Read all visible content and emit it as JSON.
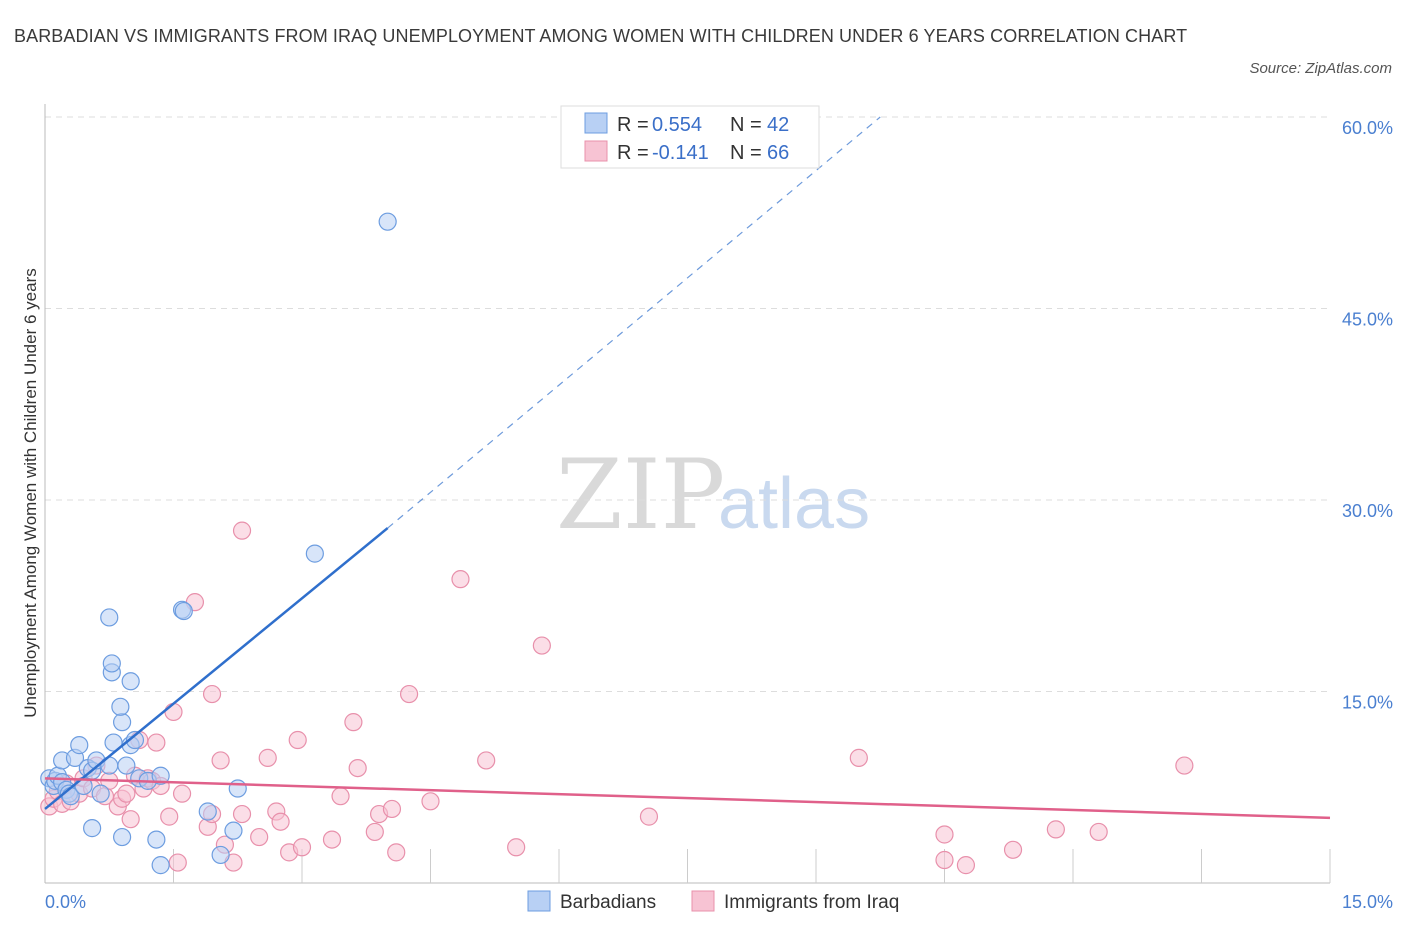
{
  "title": "BARBADIAN VS IMMIGRANTS FROM IRAQ UNEMPLOYMENT AMONG WOMEN WITH CHILDREN UNDER 6 YEARS CORRELATION CHART",
  "source": "Source: ZipAtlas.com",
  "watermark": {
    "zip": "ZIP",
    "atlas": "atlas"
  },
  "colors": {
    "blue_fill": "#b8d0f4",
    "blue_stroke": "#6d9de0",
    "blue_line": "#2f6fcc",
    "pink_fill": "#f7c3d3",
    "pink_stroke": "#e890ab",
    "pink_line": "#e0608a",
    "grid": "#dddddd",
    "axis_text": "#4a7fd0"
  },
  "legend": {
    "r_label": "R =",
    "n_label": "N =",
    "rows": [
      {
        "r": "0.554",
        "n": "42"
      },
      {
        "r": "-0.141",
        "n": "66"
      }
    ]
  },
  "chart_data": {
    "type": "scatter",
    "title": "BARBADIAN VS IMMIGRANTS FROM IRAQ UNEMPLOYMENT AMONG WOMEN WITH CHILDREN UNDER 6 YEARS CORRELATION CHART",
    "xlabel": "",
    "ylabel": "Unemployment Among Women with Children Under 6 years",
    "xlim": [
      0,
      15
    ],
    "ylim": [
      0,
      60
    ],
    "x_tick_labels": [
      "0.0%",
      "15.0%"
    ],
    "y_ticks": [
      15,
      30,
      45,
      60
    ],
    "y_tick_labels": [
      "15.0%",
      "30.0%",
      "45.0%",
      "60.0%"
    ],
    "grid": true,
    "legend_position": "top-center",
    "series": [
      {
        "name": "Barbadians",
        "R": 0.554,
        "N": 42,
        "trend": {
          "x0": 0.0,
          "y0": 5.8,
          "x1": 4.0,
          "y1": 27.8,
          "dashed_to_x": 9.75,
          "dashed_to_y": 60.0
        },
        "points": [
          [
            0.05,
            8.2
          ],
          [
            0.1,
            7.6
          ],
          [
            0.12,
            8.0
          ],
          [
            0.15,
            8.4
          ],
          [
            0.2,
            7.9
          ],
          [
            0.25,
            7.3
          ],
          [
            0.28,
            7.0
          ],
          [
            0.3,
            6.8
          ],
          [
            0.2,
            9.6
          ],
          [
            0.35,
            9.8
          ],
          [
            0.4,
            10.8
          ],
          [
            0.5,
            9.0
          ],
          [
            0.55,
            8.8
          ],
          [
            0.45,
            7.6
          ],
          [
            0.6,
            9.6
          ],
          [
            0.65,
            7.0
          ],
          [
            0.75,
            9.2
          ],
          [
            0.8,
            11.0
          ],
          [
            0.9,
            12.6
          ],
          [
            0.88,
            13.8
          ],
          [
            0.95,
            9.2
          ],
          [
            1.0,
            10.8
          ],
          [
            1.05,
            11.2
          ],
          [
            1.1,
            8.2
          ],
          [
            1.2,
            8.0
          ],
          [
            1.35,
            8.4
          ],
          [
            1.0,
            15.8
          ],
          [
            0.78,
            16.5
          ],
          [
            0.78,
            17.2
          ],
          [
            0.75,
            20.8
          ],
          [
            1.6,
            21.4
          ],
          [
            1.62,
            21.3
          ],
          [
            0.55,
            4.3
          ],
          [
            0.9,
            3.6
          ],
          [
            1.3,
            3.4
          ],
          [
            1.35,
            1.4
          ],
          [
            1.9,
            5.6
          ],
          [
            2.05,
            2.2
          ],
          [
            2.2,
            4.1
          ],
          [
            2.25,
            7.4
          ],
          [
            3.15,
            25.8
          ],
          [
            4.0,
            51.8
          ]
        ]
      },
      {
        "name": "Immigrants from Iraq",
        "R": -0.141,
        "N": 66,
        "trend": {
          "x0": 0.0,
          "y0": 8.2,
          "x1": 15.0,
          "y1": 5.1
        },
        "points": [
          [
            0.05,
            6.0
          ],
          [
            0.1,
            6.6
          ],
          [
            0.15,
            7.2
          ],
          [
            0.2,
            6.2
          ],
          [
            0.25,
            7.8
          ],
          [
            0.3,
            6.4
          ],
          [
            0.4,
            7.0
          ],
          [
            0.45,
            8.2
          ],
          [
            0.55,
            7.4
          ],
          [
            0.6,
            9.2
          ],
          [
            0.7,
            6.8
          ],
          [
            0.75,
            8.0
          ],
          [
            0.85,
            6.0
          ],
          [
            0.9,
            6.6
          ],
          [
            0.95,
            7.0
          ],
          [
            1.0,
            5.0
          ],
          [
            1.05,
            8.4
          ],
          [
            1.1,
            11.2
          ],
          [
            1.15,
            7.4
          ],
          [
            1.2,
            8.2
          ],
          [
            1.25,
            8.0
          ],
          [
            1.3,
            11.0
          ],
          [
            1.35,
            7.6
          ],
          [
            1.45,
            5.2
          ],
          [
            1.5,
            13.4
          ],
          [
            1.55,
            1.6
          ],
          [
            1.6,
            7.0
          ],
          [
            1.75,
            22.0
          ],
          [
            1.9,
            4.4
          ],
          [
            1.95,
            5.4
          ],
          [
            1.95,
            14.8
          ],
          [
            2.05,
            9.6
          ],
          [
            2.1,
            3.0
          ],
          [
            2.2,
            1.6
          ],
          [
            2.3,
            5.4
          ],
          [
            2.3,
            27.6
          ],
          [
            2.5,
            3.6
          ],
          [
            2.6,
            9.8
          ],
          [
            2.7,
            5.6
          ],
          [
            2.75,
            4.8
          ],
          [
            2.85,
            2.4
          ],
          [
            2.95,
            11.2
          ],
          [
            3.0,
            2.8
          ],
          [
            3.35,
            3.4
          ],
          [
            3.45,
            6.8
          ],
          [
            3.6,
            12.6
          ],
          [
            3.65,
            9.0
          ],
          [
            3.85,
            4.0
          ],
          [
            3.9,
            5.4
          ],
          [
            4.05,
            5.8
          ],
          [
            4.1,
            2.4
          ],
          [
            4.25,
            14.8
          ],
          [
            4.5,
            6.4
          ],
          [
            4.85,
            23.8
          ],
          [
            5.15,
            9.6
          ],
          [
            5.5,
            2.8
          ],
          [
            5.8,
            18.6
          ],
          [
            7.05,
            5.2
          ],
          [
            9.5,
            9.8
          ],
          [
            10.5,
            1.8
          ],
          [
            10.5,
            3.8
          ],
          [
            10.75,
            1.4
          ],
          [
            11.3,
            2.6
          ],
          [
            11.8,
            4.2
          ],
          [
            12.3,
            4.0
          ],
          [
            13.3,
            9.2
          ]
        ]
      }
    ]
  },
  "bottom_legend": [
    {
      "label": "Barbadians"
    },
    {
      "label": "Immigrants from Iraq"
    }
  ]
}
